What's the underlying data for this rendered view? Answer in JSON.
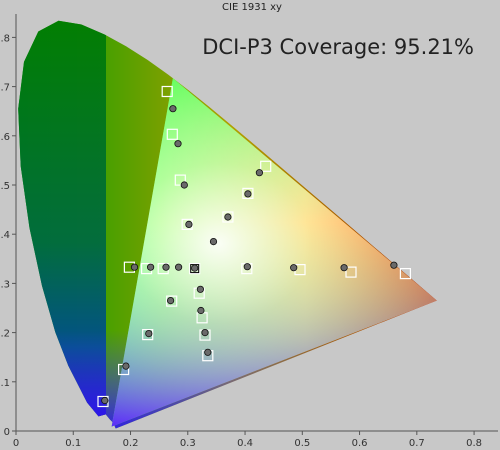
{
  "chart_data": {
    "type": "scatter",
    "title": "CIE 1931 xy",
    "annotation": "DCI-P3 Coverage: 95.21%",
    "xlim": [
      0,
      0.85
    ],
    "ylim": [
      0,
      0.85
    ],
    "x_ticks": [
      "0",
      "0.1",
      "0.2",
      "0.3",
      "0.4",
      "0.5",
      "0.6",
      "0.7",
      "0.8"
    ],
    "y_ticks": [
      "0",
      "0.1",
      "0.2",
      "0.3",
      "0.4",
      "0.5",
      "0.6",
      "0.7",
      "0.8"
    ],
    "x_tick_values": [
      0,
      0.1,
      0.2,
      0.3,
      0.4,
      0.5,
      0.6,
      0.7,
      0.8
    ],
    "y_tick_values": [
      0,
      0.1,
      0.2,
      0.3,
      0.4,
      0.5,
      0.6,
      0.7,
      0.8
    ],
    "grid": false,
    "gamut_triangle": [
      [
        0.735,
        0.265
      ],
      [
        0.274,
        0.717
      ],
      [
        0.167,
        0.009
      ]
    ],
    "spectral_locus": [
      [
        0.1741,
        0.005
      ],
      [
        0.1714,
        0.0125
      ],
      [
        0.1689,
        0.0177
      ],
      [
        0.1644,
        0.023
      ],
      [
        0.1566,
        0.0338
      ],
      [
        0.144,
        0.0297
      ],
      [
        0.1241,
        0.0578
      ],
      [
        0.0913,
        0.1327
      ],
      [
        0.0687,
        0.2007
      ],
      [
        0.0454,
        0.295
      ],
      [
        0.0235,
        0.4127
      ],
      [
        0.0082,
        0.5384
      ],
      [
        0.0039,
        0.6548
      ],
      [
        0.0139,
        0.7502
      ],
      [
        0.0389,
        0.812
      ],
      [
        0.0743,
        0.8338
      ],
      [
        0.1142,
        0.8262
      ],
      [
        0.1547,
        0.8059
      ],
      [
        0.1929,
        0.7816
      ],
      [
        0.2296,
        0.7543
      ],
      [
        0.2658,
        0.7243
      ],
      [
        0.3016,
        0.6923
      ],
      [
        0.3373,
        0.6589
      ],
      [
        0.3731,
        0.6245
      ],
      [
        0.4087,
        0.5896
      ],
      [
        0.4441,
        0.5547
      ],
      [
        0.4788,
        0.5202
      ],
      [
        0.5125,
        0.4866
      ],
      [
        0.5448,
        0.4544
      ],
      [
        0.5752,
        0.4242
      ],
      [
        0.6029,
        0.3965
      ],
      [
        0.627,
        0.3725
      ],
      [
        0.6482,
        0.3514
      ],
      [
        0.6658,
        0.334
      ],
      [
        0.6915,
        0.3083
      ],
      [
        0.7079,
        0.292
      ],
      [
        0.7347,
        0.2653
      ]
    ],
    "target_squares": [
      [
        0.152,
        0.06
      ],
      [
        0.188,
        0.125
      ],
      [
        0.23,
        0.196
      ],
      [
        0.272,
        0.264
      ],
      [
        0.312,
        0.33
      ],
      [
        0.335,
        0.153
      ],
      [
        0.33,
        0.195
      ],
      [
        0.325,
        0.23
      ],
      [
        0.32,
        0.28
      ],
      [
        0.264,
        0.69
      ],
      [
        0.273,
        0.603
      ],
      [
        0.287,
        0.51
      ],
      [
        0.299,
        0.42
      ],
      [
        0.198,
        0.333
      ],
      [
        0.228,
        0.33
      ],
      [
        0.257,
        0.33
      ],
      [
        0.405,
        0.483
      ],
      [
        0.37,
        0.435
      ],
      [
        0.436,
        0.538
      ],
      [
        0.403,
        0.33
      ],
      [
        0.496,
        0.328
      ],
      [
        0.585,
        0.323
      ],
      [
        0.68,
        0.32
      ]
    ],
    "measured_points": [
      [
        0.155,
        0.062
      ],
      [
        0.192,
        0.132
      ],
      [
        0.232,
        0.198
      ],
      [
        0.27,
        0.265
      ],
      [
        0.312,
        0.331
      ],
      [
        0.335,
        0.16
      ],
      [
        0.33,
        0.2
      ],
      [
        0.323,
        0.245
      ],
      [
        0.322,
        0.288
      ],
      [
        0.274,
        0.655
      ],
      [
        0.283,
        0.584
      ],
      [
        0.294,
        0.5
      ],
      [
        0.302,
        0.42
      ],
      [
        0.207,
        0.333
      ],
      [
        0.235,
        0.333
      ],
      [
        0.262,
        0.333
      ],
      [
        0.284,
        0.333
      ],
      [
        0.345,
        0.385
      ],
      [
        0.405,
        0.482
      ],
      [
        0.37,
        0.435
      ],
      [
        0.425,
        0.525
      ],
      [
        0.404,
        0.334
      ],
      [
        0.485,
        0.332
      ],
      [
        0.573,
        0.332
      ],
      [
        0.66,
        0.337
      ]
    ]
  }
}
